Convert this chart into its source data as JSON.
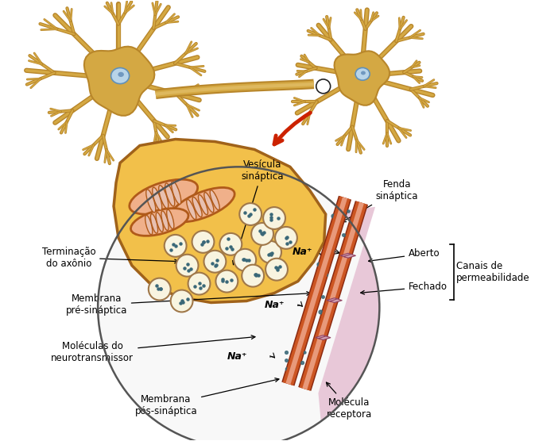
{
  "bg_color": "#ffffff",
  "neuron_body_color": "#d4a843",
  "neuron_outline_color": "#b8862a",
  "axon_color": "#c9972e",
  "terminal_fill": "#f2c04a",
  "terminal_outline": "#a0621a",
  "mito_outer": "#b05a1a",
  "mito_fill": "#f0b08a",
  "mito_crista": "#e8c0b0",
  "vesicle_fill": "#f8f4e0",
  "vesicle_outline": "#a0784a",
  "dot_color": "#3a6878",
  "membrane_dark": "#8b2a10",
  "membrane_mid": "#cc5522",
  "membrane_light": "#e8997a",
  "post_bg": "#e8c8d8",
  "cleft_bg": "#f5f0f0",
  "circle_outline": "#555555",
  "red_arrow": "#cc2200",
  "label_color": "#000000",
  "labels": {
    "vesicula": "Vesícula\nsináptica",
    "fenda": "Fenda\nsináptica",
    "terminacao": "Terminação\ndo axônio",
    "membrana_pre": "Membrana\npré-sináptica",
    "moleculas": "Moléculas do\nneurotransmissor",
    "membrana_pos": "Membrana\npós-sináptica",
    "molecula_receptora": "Molécula\nreceptora",
    "na1": "Na⁺",
    "na2": "Na⁺",
    "na3": "Na⁺",
    "aberto": "Aberto",
    "fechado": "Fechado",
    "canais": "Canais de\npermeabilidade"
  }
}
